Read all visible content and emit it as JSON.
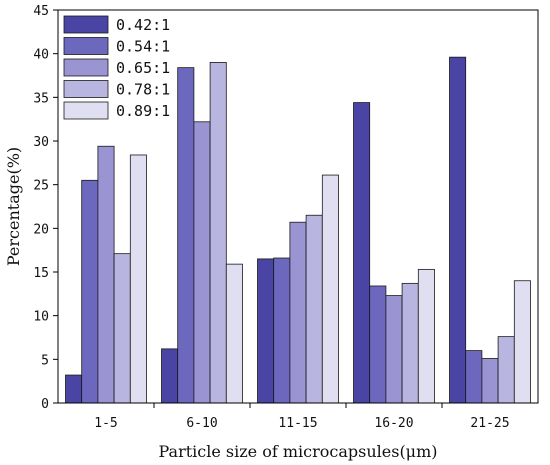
{
  "chart_data": {
    "type": "bar",
    "xlabel": "Particle size of microcapsules(μm)",
    "ylabel": "Percentage(%)",
    "ylim": [
      0,
      45
    ],
    "yticks": [
      0,
      5,
      10,
      15,
      20,
      25,
      30,
      35,
      40,
      45
    ],
    "categories": [
      "1-5",
      "6-10",
      "11-15",
      "16-20",
      "21-25"
    ],
    "legend_position": "top-left",
    "series": [
      {
        "name": "0.42:1",
        "color": "#4a45a4",
        "values": [
          3.2,
          6.2,
          16.5,
          34.4,
          39.6
        ]
      },
      {
        "name": "0.54:1",
        "color": "#6b68bd",
        "values": [
          25.5,
          38.4,
          16.6,
          13.4,
          6.0
        ]
      },
      {
        "name": "0.65:1",
        "color": "#9a94d2",
        "values": [
          29.4,
          32.2,
          20.7,
          12.3,
          5.1
        ]
      },
      {
        "name": "0.78:1",
        "color": "#b8b5e0",
        "values": [
          17.1,
          39.0,
          21.5,
          13.7,
          7.6
        ]
      },
      {
        "name": "0.89:1",
        "color": "#e0def1",
        "values": [
          28.4,
          15.9,
          26.1,
          15.3,
          14.0
        ]
      }
    ]
  }
}
